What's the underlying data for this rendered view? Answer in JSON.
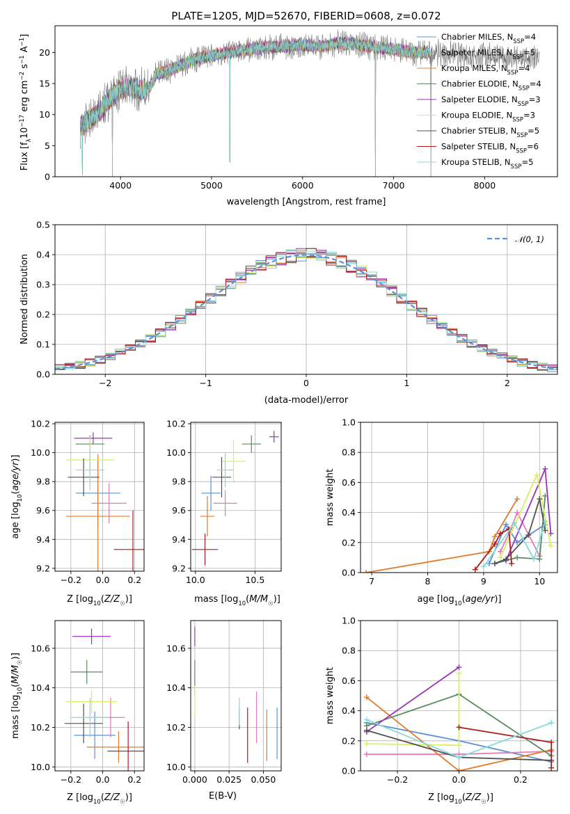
{
  "colors": [
    "#5c8fd6",
    "#e07ab8",
    "#e07b2a",
    "#5a8a5e",
    "#9b30b8",
    "#d8f060",
    "#505050",
    "#aa1a1a",
    "#88d8d8"
  ],
  "chart_data": [
    {
      "id": "spectrum",
      "type": "line",
      "title": "PLATE=1205, MJD=52670, FIBERID=0608, z=0.072",
      "xlabel": "wavelength [Angstrom, rest frame]",
      "ylabel": "Flux [f_λ10⁻¹⁷ erg cm⁻² s⁻¹ A⁻¹]",
      "xlim": [
        3280,
        8800
      ],
      "ylim": [
        0,
        24.3
      ],
      "xticks": [
        4000,
        5000,
        6000,
        7000,
        8000
      ],
      "yticks": [
        0,
        5,
        10,
        15,
        20
      ],
      "grid": false,
      "legend": "right",
      "legend_entries": [
        {
          "name": "Chabrier MILES, N",
          "sub": "SSP",
          "tail": "=4"
        },
        {
          "name": "Salpeter MILES, N",
          "sub": "SSP",
          "tail": "=5"
        },
        {
          "name": "Kroupa MILES, N",
          "sub": "SSP",
          "tail": "=4"
        },
        {
          "name": "Chabrier ELODIE, N",
          "sub": "SSP",
          "tail": "=4"
        },
        {
          "name": "Salpeter ELODIE, N",
          "sub": "SSP",
          "tail": "=3"
        },
        {
          "name": "Kroupa ELODIE, N",
          "sub": "SSP",
          "tail": "=3"
        },
        {
          "name": "Chabrier STELIB, N",
          "sub": "SSP",
          "tail": "=5"
        },
        {
          "name": "Salpeter STELIB, N",
          "sub": "SSP",
          "tail": "=6"
        },
        {
          "name": "Kroupa STELIB, N",
          "sub": "SSP",
          "tail": "=5"
        }
      ],
      "continuum": {
        "x": [
          3560,
          3700,
          3800,
          3900,
          4000,
          4100,
          4200,
          4300,
          4400,
          4600,
          4800,
          5000,
          5200,
          5400,
          5600,
          5800,
          6000,
          6200,
          6400,
          6600,
          6800,
          7000,
          7200,
          7400,
          7600,
          7800,
          8000,
          8200,
          8400,
          8600
        ],
        "y": [
          8.0,
          9.5,
          11.0,
          13.0,
          14.0,
          14.5,
          14.0,
          14.0,
          16.5,
          17.5,
          18.8,
          19.5,
          20.0,
          20.5,
          20.8,
          21.0,
          21.2,
          21.0,
          21.5,
          21.3,
          20.8,
          20.5,
          20.0,
          20.0,
          19.8,
          19.5,
          19.5,
          19.2,
          19.0,
          18.8
        ]
      },
      "data_range": [
        3560,
        8600
      ],
      "model_range": [
        3560,
        7400
      ],
      "absorption_drops": [
        {
          "x": 3580,
          "y": 0.3
        },
        {
          "x": 3910,
          "y": 0.0
        },
        {
          "x": 5200,
          "y": 2.3
        },
        {
          "x": 6800,
          "y": 0.0
        },
        {
          "x": 7410,
          "y": 0.0
        }
      ]
    },
    {
      "id": "residuals",
      "type": "line",
      "xlabel": "(data-model)/error",
      "ylabel": "Normed distribution",
      "xlim": [
        -2.5,
        2.5
      ],
      "ylim": [
        0,
        0.5
      ],
      "xticks": [
        -2,
        -1,
        0,
        1,
        2
      ],
      "xtick_labels": [
        "−2",
        "−1",
        "0",
        "1",
        "2"
      ],
      "yticks": [
        0.0,
        0.1,
        0.2,
        0.3,
        0.4,
        0.5
      ],
      "grid": true,
      "legend": "top-right",
      "legend_label": "𝒩(0, 1)",
      "gaussian": {
        "mu": 0,
        "sigma": 1
      },
      "bins": {
        "start": -2.5,
        "width": 0.1,
        "count": 50
      },
      "bin_scatter": [
        0.02,
        -0.015,
        0.01,
        -0.005,
        0.015,
        -0.02,
        0.012,
        -0.008,
        0.018,
        -0.012,
        0.006,
        -0.018,
        0.02,
        -0.01,
        0.004,
        -0.016,
        0.014,
        -0.004,
        0.01,
        -0.02,
        0.016,
        -0.006,
        0.008,
        -0.014,
        0.02
      ]
    },
    {
      "id": "age-vs-Z",
      "type": "scatter",
      "xlabel": "Z [log₁₀(Z/Z☉)]",
      "ylabel": "age  [log₁₀(age/yr)]",
      "xlim": [
        -0.3,
        0.26
      ],
      "ylim": [
        9.18,
        10.21
      ],
      "xticks": [
        -0.2,
        0.0,
        0.2
      ],
      "xtick_labels": [
        "−0.2",
        "0.0",
        "0.2"
      ],
      "yticks": [
        9.2,
        9.4,
        9.6,
        9.8,
        10.0,
        10.2
      ],
      "grid": true,
      "points": [
        {
          "x": -0.03,
          "y": 9.72,
          "xerr": 0.14,
          "yerr": 0.24
        },
        {
          "x": 0.04,
          "y": 9.65,
          "xerr": 0.11,
          "yerr": 0.14
        },
        {
          "x": -0.03,
          "y": 9.56,
          "xerr": 0.2,
          "yerr": 0.43
        },
        {
          "x": -0.08,
          "y": 10.06,
          "xerr": 0.09,
          "yerr": 0.06
        },
        {
          "x": -0.06,
          "y": 10.1,
          "xerr": 0.12,
          "yerr": 0.04
        },
        {
          "x": -0.08,
          "y": 9.95,
          "xerr": 0.15,
          "yerr": 0.16
        },
        {
          "x": -0.12,
          "y": 9.83,
          "xerr": 0.1,
          "yerr": 0.13
        },
        {
          "x": 0.19,
          "y": 9.33,
          "xerr": 0.12,
          "yerr": 0.27
        },
        {
          "x": -0.08,
          "y": 9.88,
          "xerr": 0.09,
          "yerr": 0.14
        }
      ]
    },
    {
      "id": "age-vs-mass",
      "type": "scatter",
      "xlabel": "mass [log₁₀(M/M☉)]",
      "xlim": [
        9.96,
        10.72
      ],
      "ylim": [
        9.18,
        10.21
      ],
      "xticks": [
        10.0,
        10.5
      ],
      "xtick_labels": [
        "10.0",
        "10.5"
      ],
      "yticks": [
        9.2,
        9.4,
        9.6,
        9.8,
        10.0,
        10.2
      ],
      "grid": true,
      "points": [
        {
          "x": 10.13,
          "y": 9.72,
          "xerr": 0.08,
          "yerr": 0.12
        },
        {
          "x": 10.25,
          "y": 9.65,
          "xerr": 0.1,
          "yerr": 0.09
        },
        {
          "x": 10.1,
          "y": 9.56,
          "xerr": 0.06,
          "yerr": 0.14
        },
        {
          "x": 10.47,
          "y": 10.06,
          "xerr": 0.08,
          "yerr": 0.06
        },
        {
          "x": 10.66,
          "y": 10.11,
          "xerr": 0.04,
          "yerr": 0.04
        },
        {
          "x": 10.32,
          "y": 9.94,
          "xerr": 0.1,
          "yerr": 0.15
        },
        {
          "x": 10.22,
          "y": 9.83,
          "xerr": 0.08,
          "yerr": 0.14
        },
        {
          "x": 10.08,
          "y": 9.33,
          "xerr": 0.11,
          "yerr": 0.11
        },
        {
          "x": 10.25,
          "y": 9.88,
          "xerr": 0.07,
          "yerr": 0.12
        }
      ]
    },
    {
      "id": "weight-vs-age",
      "type": "line",
      "xlabel": "age  [log₁₀(age/yr)]",
      "ylabel": "mass weight",
      "xlim": [
        6.8,
        10.32
      ],
      "ylim": [
        0,
        1.0
      ],
      "xticks": [
        7,
        8,
        9,
        10
      ],
      "yticks": [
        0.0,
        0.2,
        0.4,
        0.6,
        0.8,
        1.0
      ],
      "grid": true,
      "series": [
        {
          "points": [
            [
              9.1,
              0.06
            ],
            [
              9.4,
              0.32
            ],
            [
              9.6,
              0.2
            ],
            [
              10.1,
              0.32
            ]
          ]
        },
        {
          "points": [
            [
              9.3,
              0.14
            ],
            [
              9.5,
              0.3
            ],
            [
              9.6,
              0.4
            ],
            [
              10.0,
              0.11
            ]
          ]
        },
        {
          "points": [
            [
              6.9,
              0.0
            ],
            [
              9.1,
              0.14
            ],
            [
              9.2,
              0.24
            ],
            [
              9.6,
              0.49
            ]
          ]
        },
        {
          "points": [
            [
              9.2,
              0.06
            ],
            [
              9.6,
              0.1
            ],
            [
              10.0,
              0.09
            ],
            [
              10.1,
              0.51
            ]
          ]
        },
        {
          "points": [
            [
              9.4,
              0.08
            ],
            [
              10.1,
              0.69
            ],
            [
              10.2,
              0.26
            ]
          ]
        },
        {
          "points": [
            [
              9.3,
              0.1
            ],
            [
              9.95,
              0.65
            ],
            [
              10.2,
              0.18
            ]
          ]
        },
        {
          "points": [
            [
              9.2,
              0.06
            ],
            [
              9.4,
              0.09
            ],
            [
              9.8,
              0.25
            ],
            [
              10.0,
              0.49
            ],
            [
              10.1,
              0.28
            ]
          ]
        },
        {
          "points": [
            [
              8.85,
              0.02
            ],
            [
              9.2,
              0.19
            ],
            [
              9.3,
              0.26
            ],
            [
              9.45,
              0.29
            ],
            [
              9.5,
              0.06
            ]
          ]
        },
        {
          "points": [
            [
              9.0,
              0.04
            ],
            [
              9.55,
              0.33
            ],
            [
              9.9,
              0.09
            ],
            [
              10.1,
              0.34
            ]
          ]
        }
      ]
    },
    {
      "id": "mass-vs-Z",
      "type": "scatter",
      "xlabel": "Z [log₁₀(Z/Z☉)]",
      "ylabel": "mass [log₁₀(M/M☉)]",
      "xlim": [
        -0.3,
        0.26
      ],
      "ylim": [
        9.98,
        10.74
      ],
      "xticks": [
        -0.2,
        0.0,
        0.2
      ],
      "xtick_labels": [
        "−0.2",
        "0.0",
        "0.2"
      ],
      "yticks": [
        10.0,
        10.2,
        10.4,
        10.6
      ],
      "grid": true,
      "points": [
        {
          "x": -0.05,
          "y": 10.16,
          "xerr": 0.13,
          "yerr": 0.12
        },
        {
          "x": 0.05,
          "y": 10.25,
          "xerr": 0.09,
          "yerr": 0.1
        },
        {
          "x": 0.1,
          "y": 10.1,
          "xerr": 0.2,
          "yerr": 0.08
        },
        {
          "x": -0.1,
          "y": 10.48,
          "xerr": 0.1,
          "yerr": 0.06
        },
        {
          "x": -0.07,
          "y": 10.66,
          "xerr": 0.12,
          "yerr": 0.04
        },
        {
          "x": -0.07,
          "y": 10.33,
          "xerr": 0.16,
          "yerr": 0.06
        },
        {
          "x": -0.12,
          "y": 10.22,
          "xerr": 0.12,
          "yerr": 0.1
        },
        {
          "x": 0.16,
          "y": 10.08,
          "xerr": 0.13,
          "yerr": 0.15
        },
        {
          "x": -0.08,
          "y": 10.25,
          "xerr": 0.12,
          "yerr": 0.1
        }
      ]
    },
    {
      "id": "mass-vs-ebv",
      "type": "scatter",
      "xlabel": "E(B-V)",
      "xlim": [
        -0.003,
        0.063
      ],
      "ylim": [
        9.98,
        10.74
      ],
      "xticks": [
        0.0,
        0.025,
        0.05
      ],
      "xtick_labels": [
        "0.000",
        "0.025",
        "0.050"
      ],
      "yticks": [
        10.0,
        10.2,
        10.4,
        10.6
      ],
      "grid": true,
      "points": [
        {
          "x": 0.06,
          "y": 10.17,
          "xerr": 0,
          "yerr": 0.13
        },
        {
          "x": 0.045,
          "y": 10.25,
          "xerr": 0,
          "yerr": 0.13
        },
        {
          "x": 0.0525,
          "y": 10.16,
          "xerr": 0,
          "yerr": 0.13
        },
        {
          "x": 0.0,
          "y": 10.45,
          "xerr": 0,
          "yerr": 0.09
        },
        {
          "x": 0.0,
          "y": 10.66,
          "xerr": 0,
          "yerr": 0.05
        },
        {
          "x": 0.0,
          "y": 10.33,
          "xerr": 0,
          "yerr": 0.08
        },
        {
          "x": 0.0325,
          "y": 10.24,
          "xerr": 0,
          "yerr": 0.05
        },
        {
          "x": 0.0385,
          "y": 10.16,
          "xerr": 0,
          "yerr": 0.14
        },
        {
          "x": 0.0325,
          "y": 10.28,
          "xerr": 0,
          "yerr": 0.07
        }
      ]
    },
    {
      "id": "weight-vs-Z",
      "type": "line",
      "xlabel": "Z [log₁₀(Z/Z☉)]",
      "ylabel": "mass weight",
      "xlim": [
        -0.32,
        0.32
      ],
      "ylim": [
        0,
        1.0
      ],
      "xticks": [
        -0.2,
        0.0,
        0.2
      ],
      "xtick_labels": [
        "−0.2",
        "0.0",
        "0.2"
      ],
      "yticks": [
        0.0,
        0.2,
        0.4,
        0.6,
        0.8,
        1.0
      ],
      "grid": true,
      "series": [
        {
          "points": [
            [
              -0.3,
              0.32
            ],
            [
              0.0,
              0.2
            ],
            [
              0.3,
              0.06
            ]
          ]
        },
        {
          "points": [
            [
              -0.3,
              0.11
            ],
            [
              0.0,
              0.11
            ],
            [
              0.3,
              0.13
            ]
          ]
        },
        {
          "points": [
            [
              -0.3,
              0.49
            ],
            [
              0.0,
              0.0
            ],
            [
              0.3,
              0.14
            ]
          ]
        },
        {
          "points": [
            [
              -0.3,
              0.3
            ],
            [
              0.0,
              0.51
            ],
            [
              0.3,
              0.1
            ]
          ]
        },
        {
          "points": [
            [
              -0.3,
              0.26
            ],
            [
              0.0,
              0.69
            ]
          ]
        },
        {
          "points": [
            [
              -0.3,
              0.18
            ],
            [
              0.0,
              0.17
            ],
            [
              0.0,
              0.65
            ]
          ]
        },
        {
          "points": [
            [
              -0.3,
              0.27
            ],
            [
              0.0,
              0.09
            ],
            [
              0.3,
              0.07
            ]
          ]
        },
        {
          "points": [
            [
              0.0,
              0.29
            ],
            [
              0.3,
              0.19
            ],
            [
              0.3,
              0.02
            ]
          ]
        },
        {
          "points": [
            [
              -0.3,
              0.34
            ],
            [
              0.0,
              0.09
            ],
            [
              0.3,
              0.32
            ]
          ]
        }
      ]
    }
  ]
}
